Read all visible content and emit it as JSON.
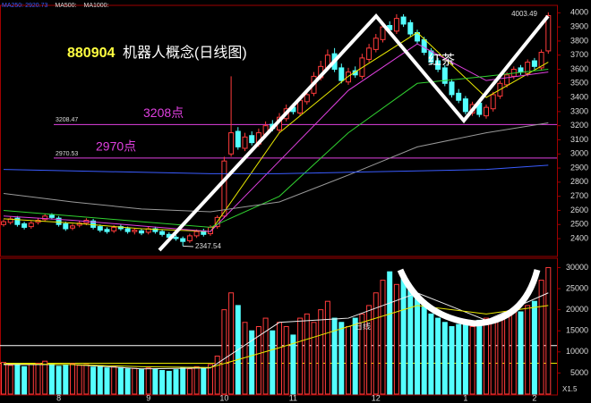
{
  "chart_data": {
    "type": "candlestick",
    "code": "880904",
    "title": "机器人概念(日线图)",
    "legend": [
      {
        "label": "MA250: 2920.73",
        "color": "#3a5cff"
      },
      {
        "label": "MA500:",
        "color": "#dddddd"
      },
      {
        "label": "MA1000:",
        "color": "#dddddd"
      }
    ],
    "annotation": "红茶",
    "period_label": "日线",
    "zoom_label": "X1.5",
    "categories": [
      null,
      null,
      null,
      null,
      null,
      null,
      null,
      null,
      "8",
      null,
      null,
      null,
      null,
      null,
      null,
      null,
      null,
      null,
      null,
      null,
      null,
      "9",
      null,
      null,
      null,
      null,
      null,
      null,
      null,
      null,
      null,
      null,
      "10",
      null,
      null,
      null,
      null,
      null,
      null,
      null,
      null,
      null,
      "11",
      null,
      null,
      null,
      null,
      null,
      null,
      null,
      null,
      null,
      null,
      null,
      "12",
      null,
      null,
      null,
      null,
      null,
      null,
      null,
      null,
      null,
      null,
      null,
      null,
      "1",
      null,
      null,
      null,
      null,
      null,
      null,
      null,
      null,
      null,
      "2",
      null,
      null
    ],
    "open": [
      2500,
      2515,
      2545,
      2505,
      2485,
      2515,
      2535,
      2565,
      2545,
      2505,
      2475,
      2495,
      2510,
      2525,
      2485,
      2465,
      2455,
      2485,
      2470,
      2450,
      2455,
      2445,
      2470,
      2450,
      2430,
      2410,
      2400,
      2385,
      2420,
      2455,
      2435,
      2485,
      2560,
      3000,
      3160,
      3040,
      3130,
      3070,
      3140,
      3210,
      3170,
      3250,
      3330,
      3290,
      3370,
      3430,
      3540,
      3610,
      3710,
      3610,
      3510,
      3590,
      3550,
      3670,
      3740,
      3810,
      3910,
      3870,
      3970,
      3930,
      3860,
      3810,
      3730,
      3660,
      3610,
      3510,
      3430,
      3390,
      3290,
      3360,
      3270,
      3320,
      3410,
      3490,
      3550,
      3610,
      3570,
      3660,
      3610,
      3730
    ],
    "high": [
      2535,
      2555,
      2560,
      2520,
      2525,
      2545,
      2575,
      2580,
      2560,
      2520,
      2505,
      2525,
      2545,
      2540,
      2500,
      2480,
      2495,
      2500,
      2485,
      2475,
      2470,
      2485,
      2485,
      2465,
      2445,
      2425,
      2415,
      2435,
      2465,
      2470,
      2495,
      2565,
      2980,
      3550,
      3190,
      3150,
      3160,
      3180,
      3230,
      3240,
      3290,
      3350,
      3360,
      3410,
      3450,
      3580,
      3660,
      3740,
      3750,
      3640,
      3610,
      3620,
      3710,
      3780,
      3850,
      3930,
      3940,
      3990,
      3990,
      3950,
      3880,
      3830,
      3750,
      3680,
      3630,
      3530,
      3460,
      3410,
      3370,
      3380,
      3350,
      3440,
      3520,
      3580,
      3620,
      3630,
      3670,
      3680,
      3740,
      4003.49
    ],
    "low": [
      2485,
      2500,
      2485,
      2465,
      2470,
      2500,
      2520,
      2535,
      2485,
      2455,
      2460,
      2480,
      2495,
      2465,
      2445,
      2435,
      2440,
      2455,
      2435,
      2430,
      2425,
      2430,
      2435,
      2415,
      2395,
      2385,
      2347.54,
      2370,
      2405,
      2415,
      2420,
      2470,
      2545,
      2980,
      3030,
      3020,
      3060,
      3050,
      3120,
      3160,
      3150,
      3230,
      3280,
      3270,
      3350,
      3410,
      3520,
      3590,
      3580,
      3500,
      3490,
      3540,
      3530,
      3650,
      3720,
      3790,
      3860,
      3850,
      3900,
      3830,
      3780,
      3700,
      3630,
      3580,
      3480,
      3400,
      3360,
      3280,
      3270,
      3260,
      3250,
      3300,
      3390,
      3470,
      3530,
      3560,
      3550,
      3600,
      3590,
      3710
    ],
    "close": [
      2520,
      2540,
      2500,
      2480,
      2510,
      2530,
      2560,
      2550,
      2500,
      2470,
      2490,
      2510,
      2530,
      2480,
      2460,
      2450,
      2480,
      2470,
      2450,
      2460,
      2440,
      2470,
      2450,
      2430,
      2410,
      2400,
      2380,
      2420,
      2450,
      2430,
      2480,
      2550,
      2950,
      3150,
      3050,
      3120,
      3080,
      3150,
      3200,
      3180,
      3260,
      3320,
      3300,
      3380,
      3420,
      3550,
      3620,
      3700,
      3600,
      3520,
      3580,
      3560,
      3680,
      3750,
      3820,
      3900,
      3880,
      3960,
      3920,
      3850,
      3800,
      3720,
      3650,
      3600,
      3500,
      3420,
      3380,
      3300,
      3350,
      3280,
      3330,
      3420,
      3500,
      3560,
      3600,
      3580,
      3650,
      3620,
      3720,
      3980
    ],
    "volume": [
      7500,
      6800,
      7200,
      6500,
      7000,
      7300,
      7800,
      7100,
      6600,
      6900,
      7200,
      6800,
      7000,
      6400,
      6600,
      6200,
      6500,
      6300,
      6000,
      6100,
      5800,
      6200,
      5900,
      5600,
      5400,
      5800,
      6300,
      6000,
      6500,
      6200,
      7000,
      9000,
      20000,
      24000,
      21000,
      17000,
      15000,
      16000,
      18000,
      15000,
      17000,
      16000,
      14000,
      18000,
      19000,
      17000,
      20000,
      22000,
      18000,
      17000,
      16000,
      18000,
      19000,
      21000,
      24000,
      27000,
      29000,
      26000,
      28000,
      25000,
      23000,
      21000,
      19000,
      18000,
      17000,
      16000,
      16500,
      17000,
      16000,
      17500,
      18000,
      17500,
      18000,
      19000,
      20000,
      19500,
      21000,
      22000,
      27000,
      30000
    ],
    "up_color": "#ff3b3b",
    "down_color": "#54ffff",
    "ma_x": [
      0,
      10,
      20,
      30,
      40,
      50,
      60,
      70,
      79
    ],
    "ma_lines": [
      {
        "color": "#e8e800",
        "values": [
          2540,
          2510,
          2470,
          2450,
          3150,
          3550,
          3860,
          3400,
          3650
        ]
      },
      {
        "color": "#e040e0",
        "values": [
          2560,
          2530,
          2490,
          2450,
          2950,
          3450,
          3780,
          3520,
          3580
        ]
      },
      {
        "color": "#30d030",
        "values": [
          2600,
          2560,
          2520,
          2480,
          2700,
          3150,
          3500,
          3550,
          3600
        ]
      },
      {
        "color": "#999999",
        "values": [
          2720,
          2660,
          2610,
          2590,
          2660,
          2850,
          3050,
          3150,
          3220
        ]
      },
      {
        "color": "#3a5cff",
        "values": [
          2890,
          2880,
          2870,
          2860,
          2860,
          2870,
          2880,
          2890,
          2920
        ]
      }
    ],
    "vol_ma_lines": [
      {
        "color": "#eeeeee",
        "values": [
          7000,
          7000,
          6000,
          6200,
          17000,
          18000,
          24000,
          17500,
          24000
        ]
      },
      {
        "color": "#e8e800",
        "values": [
          7200,
          7000,
          6500,
          6300,
          11000,
          16000,
          21000,
          19000,
          21000
        ]
      }
    ],
    "levels": [
      {
        "value": 3208.47,
        "annotation": "3208点"
      },
      {
        "value": 2970.53,
        "annotation": "2970点"
      }
    ],
    "level_color": "#e040e0",
    "vol_levels": [
      {
        "value": 11500,
        "color": "#ffffff"
      },
      {
        "value": 7300,
        "color": "#e8e800"
      }
    ],
    "ylim": [
      2280,
      4040
    ],
    "yticks": [
      2400,
      2500,
      2600,
      2700,
      2800,
      2900,
      3000,
      3100,
      3200,
      3300,
      3400,
      3500,
      3600,
      3700,
      3800,
      3900,
      4000
    ],
    "vol_ylim": [
      0,
      32000
    ],
    "vol_yticks": [
      5000,
      10000,
      15000,
      20000,
      25000,
      30000
    ]
  }
}
